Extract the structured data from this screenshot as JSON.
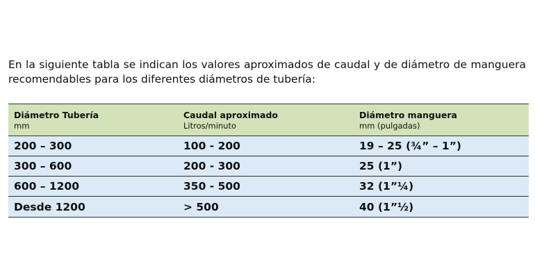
{
  "intro_text": "En la siguiente tabla se indican los valores aproximados de caudal y de diámetro de manguera recomendables para los diferentes diámetros de tubería:",
  "table": {
    "headers": [
      {
        "title": "Diámetro Tubería",
        "unit": "mm"
      },
      {
        "title": "Caudal aproximado",
        "unit": "Litros/minuto"
      },
      {
        "title": "Diámetro manguera",
        "unit": "mm (pulgadas)"
      }
    ],
    "rows": [
      [
        "200 – 300",
        "100 - 200",
        "19 – 25 (¾” – 1”)"
      ],
      [
        "300 – 600",
        "200 - 300",
        "25 (1”)"
      ],
      [
        "600 – 1200",
        "350 - 500",
        "32 (1”¼)"
      ],
      [
        "Desde 1200",
        "> 500",
        "40 (1”½)"
      ]
    ],
    "header_color": "#d3e3b9",
    "row_color": "#dbeaf6"
  }
}
